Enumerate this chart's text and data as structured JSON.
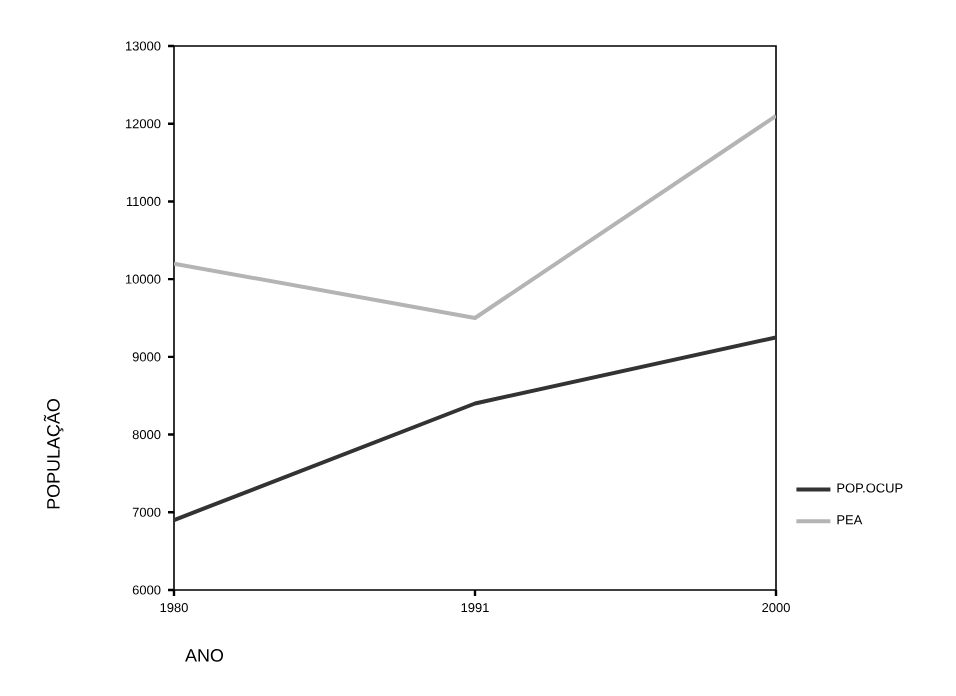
{
  "chart_data": {
    "type": "line",
    "xlabel": "ANO",
    "ylabel": "POPULAÇÃO",
    "categories": [
      "1980",
      "1991",
      "2000"
    ],
    "series": [
      {
        "name": "POP.OCUP",
        "color": "#333333",
        "values": [
          6900,
          8400,
          9250
        ]
      },
      {
        "name": "PEA",
        "color": "#b4b4b4",
        "values": [
          10200,
          9500,
          12100
        ]
      }
    ],
    "ylim": [
      6000,
      13000
    ],
    "yticks": [
      6000,
      7000,
      8000,
      9000,
      10000,
      11000,
      12000,
      13000
    ],
    "legend": "bottom right",
    "grid": false,
    "marker": "none",
    "line_style": "solid"
  }
}
